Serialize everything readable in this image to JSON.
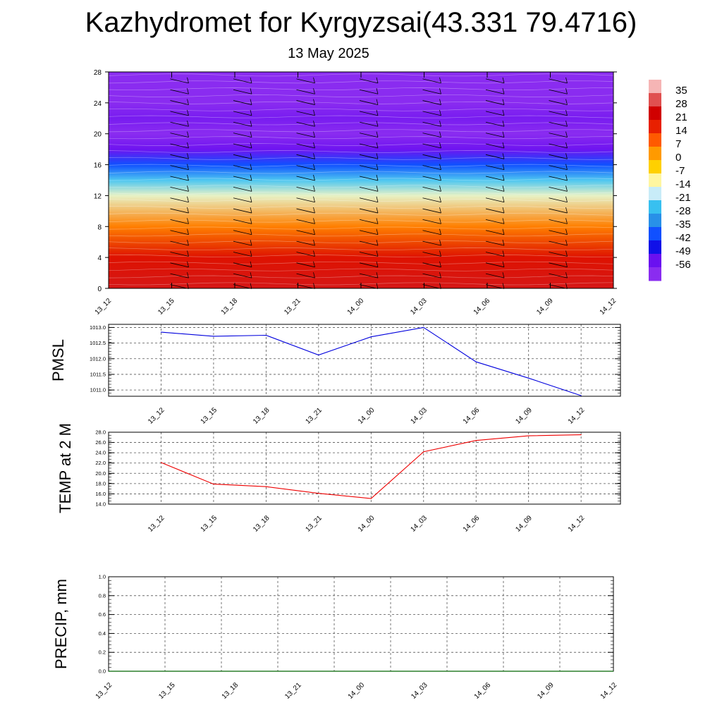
{
  "title": "Kazhydromet for Kyrgyzsai(43.331 79.4716)",
  "subtitle": "13 May 2025",
  "chart_data": [
    {
      "type": "heatmap",
      "title": "",
      "xlabel": "",
      "ylabel": "",
      "x_tick_labels": [
        "13_12",
        "13_15",
        "13_18",
        "13_21",
        "14_00",
        "14_03",
        "14_06",
        "14_09",
        "14_12"
      ],
      "y_ticks": [
        0,
        4,
        8,
        12,
        16,
        20,
        24,
        28
      ],
      "ylim": [
        0,
        28
      ],
      "colorbar_labels": [
        "35",
        "28",
        "21",
        "14",
        "7",
        "0",
        "-7",
        "-14",
        "-21",
        "-28",
        "-35",
        "-42",
        "-49",
        "-56"
      ],
      "colorbar_colors": [
        "#f6b5b5",
        "#e05050",
        "#d00000",
        "#e82000",
        "#ff5a00",
        "#ff9a00",
        "#ffd000",
        "#fff6a0",
        "#c8ecf8",
        "#38c0f0",
        "#2890e8",
        "#1050ff",
        "#1010e8",
        "#6a10f0",
        "#8a2cf0"
      ],
      "temperature_profile": [
        {
          "level": 0,
          "value": 30
        },
        {
          "level": 4,
          "value": 24
        },
        {
          "level": 8,
          "value": 10
        },
        {
          "level": 12,
          "value": -10
        },
        {
          "level": 14,
          "value": -20
        },
        {
          "level": 16,
          "value": -35
        },
        {
          "level": 18,
          "value": -50
        },
        {
          "level": 20,
          "value": -56
        },
        {
          "level": 22,
          "value": -52
        },
        {
          "level": 24,
          "value": -60
        },
        {
          "level": 28,
          "value": -62
        }
      ]
    },
    {
      "type": "line",
      "title": "",
      "ylabel": "PMSL",
      "xlabel": "",
      "x": [
        "13_12",
        "13_15",
        "13_18",
        "13_21",
        "14_00",
        "14_03",
        "14_06",
        "14_09",
        "14_12"
      ],
      "y_ticks": [
        "1011.0",
        "1011.5",
        "1012.0",
        "1012.5",
        "1013.0"
      ],
      "ylim": [
        1010.8,
        1013.1
      ],
      "series": [
        {
          "color": "#0000dd",
          "values": [
            1012.85,
            1012.72,
            1012.75,
            1012.12,
            1012.7,
            1013.0,
            1011.9,
            1011.38,
            1010.82
          ]
        }
      ]
    },
    {
      "type": "line",
      "title": "",
      "ylabel": "TEMP at 2 M",
      "xlabel": "",
      "x": [
        "13_12",
        "13_15",
        "13_18",
        "13_21",
        "14_00",
        "14_03",
        "14_06",
        "14_09",
        "14_12"
      ],
      "y_ticks": [
        "14.0",
        "16.0",
        "18.0",
        "20.0",
        "22.0",
        "24.0",
        "26.0",
        "28.0"
      ],
      "ylim": [
        14,
        28
      ],
      "series": [
        {
          "color": "#ee0000",
          "values": [
            22.1,
            17.9,
            17.4,
            16.1,
            15.1,
            24.2,
            26.4,
            27.3,
            27.5
          ]
        }
      ]
    },
    {
      "type": "line",
      "title": "",
      "ylabel": "PRECIP, mm",
      "xlabel": "",
      "x": [
        "13_12",
        "13_15",
        "13_18",
        "13_21",
        "14_00",
        "14_03",
        "14_06",
        "14_09",
        "14_12"
      ],
      "y_ticks": [
        "0.0",
        "0.2",
        "0.4",
        "0.6",
        "0.8",
        "1.0"
      ],
      "ylim": [
        0,
        1
      ],
      "series": [
        {
          "color": "#006400",
          "values": [
            0,
            0,
            0,
            0,
            0,
            0,
            0,
            0,
            0
          ]
        }
      ]
    }
  ]
}
